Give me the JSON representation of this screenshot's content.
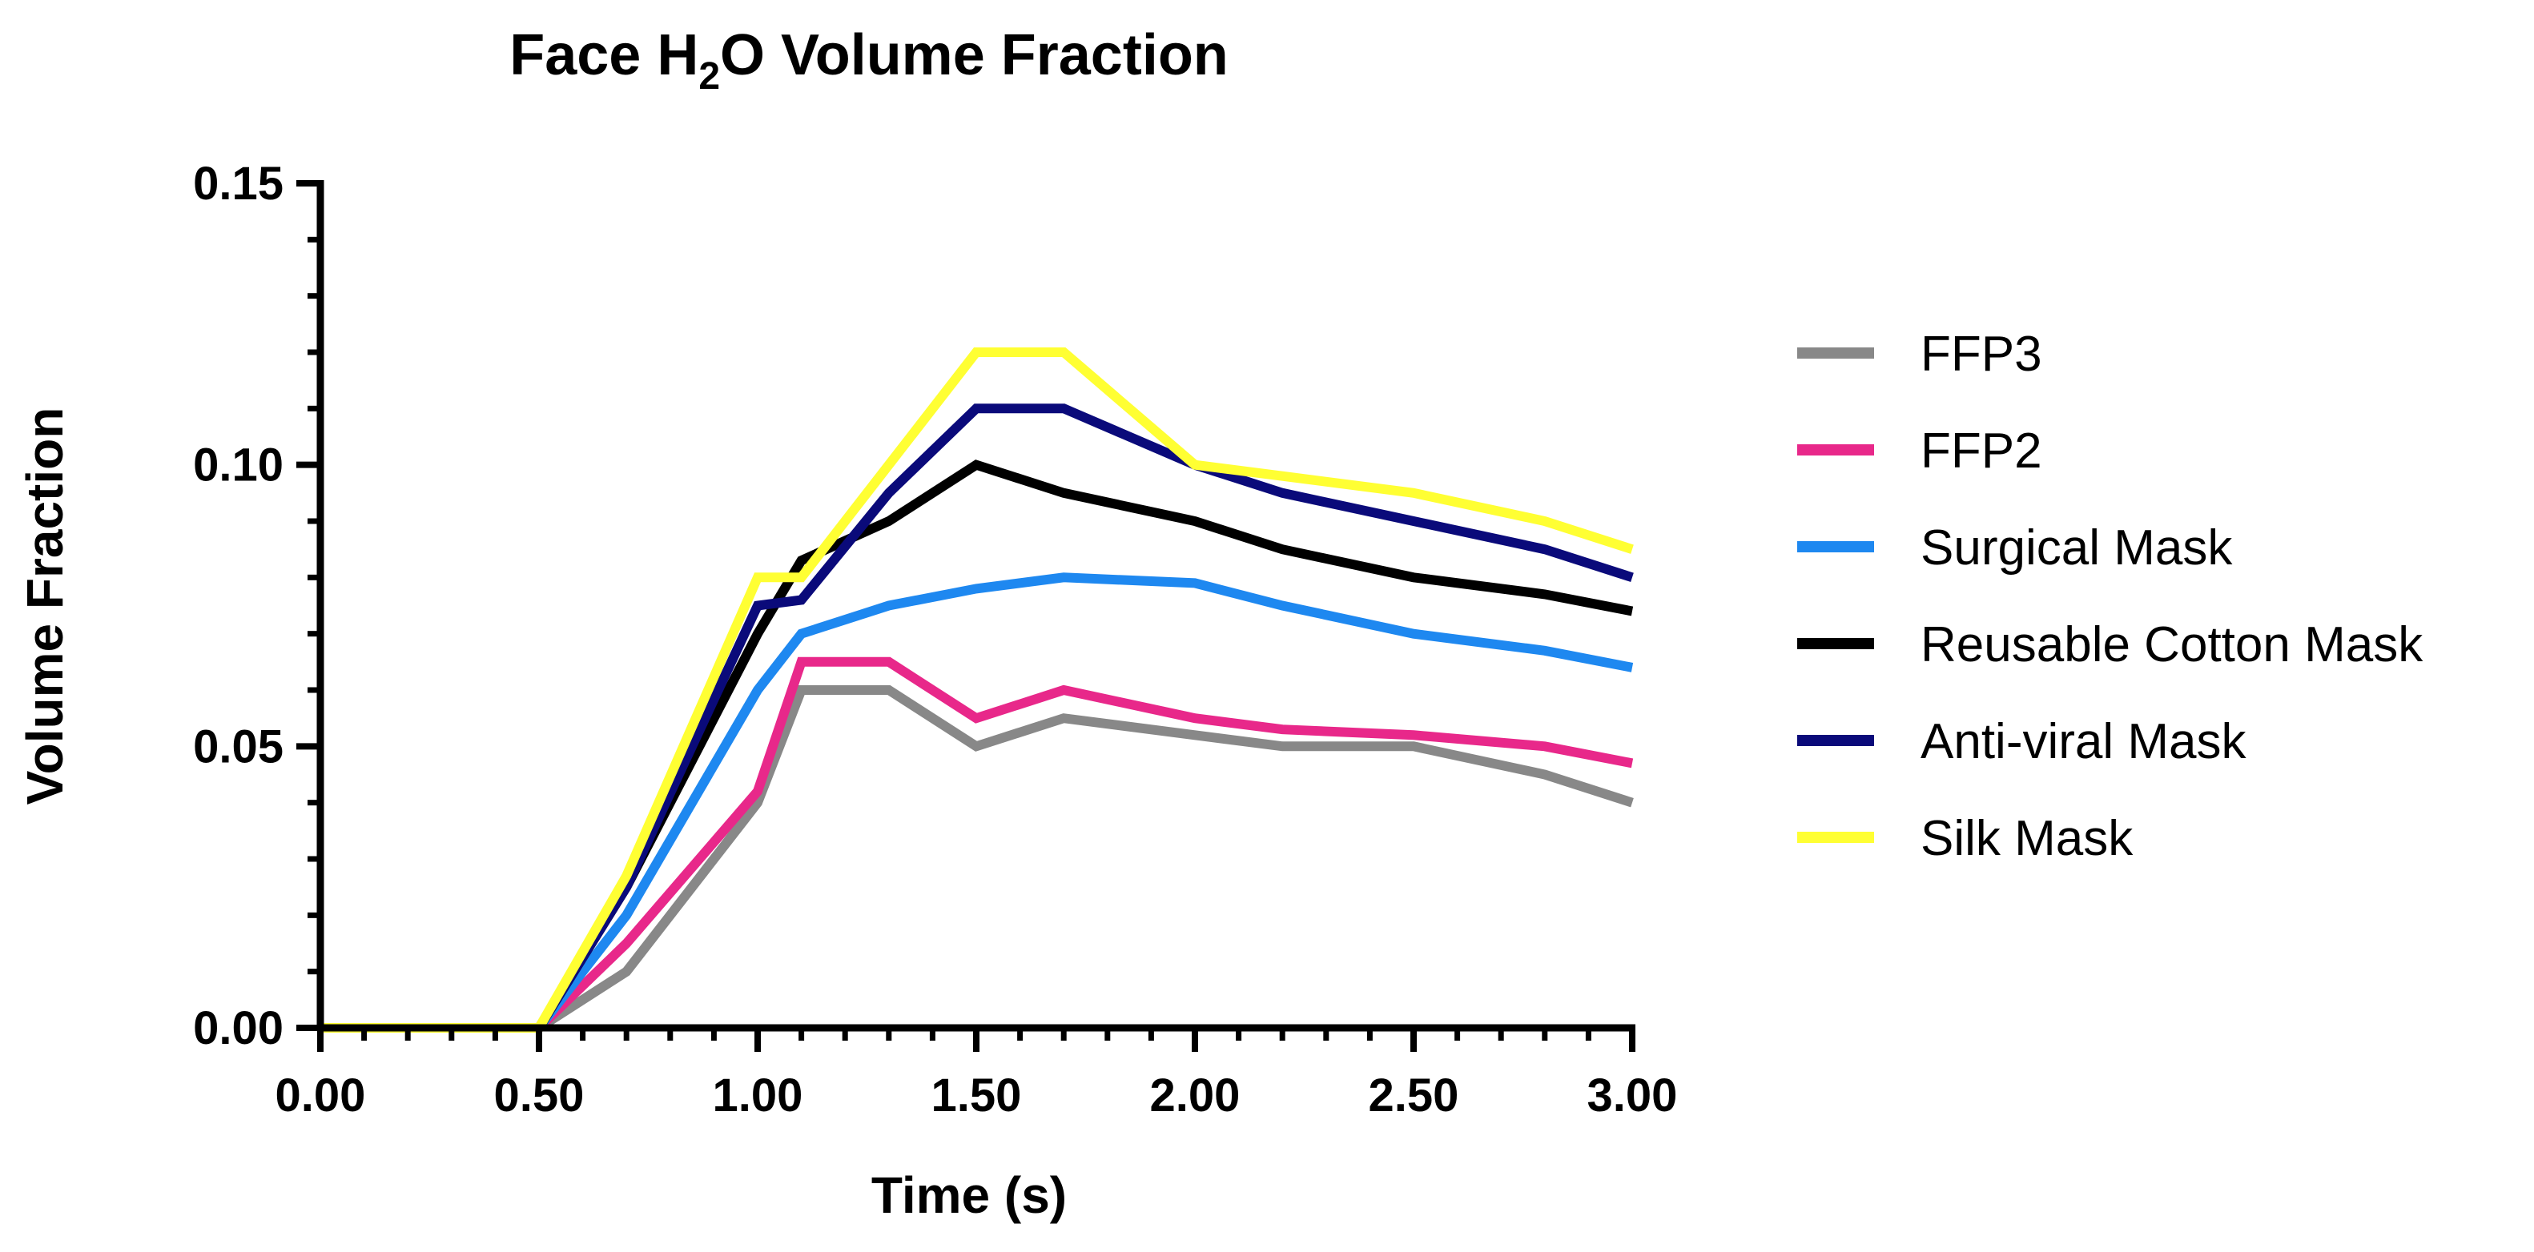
{
  "chart_data": {
    "type": "line",
    "title": {
      "prefix": "Face H",
      "subscript": "2",
      "suffix": "O Volume Fraction"
    },
    "xlabel": "Time (s)",
    "ylabel": "Volume Fraction",
    "xlim": [
      0,
      3
    ],
    "ylim": [
      0,
      0.15
    ],
    "x_ticks": [
      0,
      0.5,
      1,
      1.5,
      2,
      2.5,
      3
    ],
    "x_tick_labels": [
      "0.00",
      "0.50",
      "1.00",
      "1.50",
      "2.00",
      "2.50",
      "3.00"
    ],
    "y_ticks": [
      0,
      0.05,
      0.1,
      0.15
    ],
    "y_tick_labels": [
      "0.00",
      "0.05",
      "0.10",
      "0.15"
    ],
    "x_minor_step": 0.1,
    "y_minor_step": 0.01,
    "grid": false,
    "legend_position": "right",
    "x": [
      0,
      0.5,
      0.7,
      1.0,
      1.1,
      1.3,
      1.5,
      1.7,
      2.0,
      2.2,
      2.5,
      2.8,
      3.0
    ],
    "series": [
      {
        "name": "FFP3",
        "color": "#888888",
        "values": [
          0,
          0,
          0.01,
          0.04,
          0.06,
          0.06,
          0.05,
          0.055,
          0.052,
          0.05,
          0.05,
          0.045,
          0.04
        ]
      },
      {
        "name": "FFP2",
        "color": "#e8288a",
        "values": [
          0,
          0,
          0.015,
          0.042,
          0.065,
          0.065,
          0.055,
          0.06,
          0.055,
          0.053,
          0.052,
          0.05,
          0.047
        ]
      },
      {
        "name": "Surgical Mask",
        "color": "#1e88f0",
        "values": [
          0,
          0,
          0.02,
          0.06,
          0.07,
          0.075,
          0.078,
          0.08,
          0.079,
          0.075,
          0.07,
          0.067,
          0.064
        ]
      },
      {
        "name": "Reusable Cotton Mask",
        "color": "#000000",
        "values": [
          0,
          0,
          0.025,
          0.07,
          0.083,
          0.09,
          0.1,
          0.095,
          0.09,
          0.085,
          0.08,
          0.077,
          0.074
        ]
      },
      {
        "name": "Anti-viral Mask",
        "color": "#0a0a7a",
        "values": [
          0,
          0,
          0.025,
          0.075,
          0.076,
          0.095,
          0.11,
          0.11,
          0.1,
          0.095,
          0.09,
          0.085,
          0.08
        ]
      },
      {
        "name": "Silk Mask",
        "color": "#ffff33",
        "values": [
          0,
          0,
          0.027,
          0.08,
          0.08,
          0.1,
          0.12,
          0.12,
          0.1,
          0.098,
          0.095,
          0.09,
          0.085
        ]
      }
    ]
  }
}
